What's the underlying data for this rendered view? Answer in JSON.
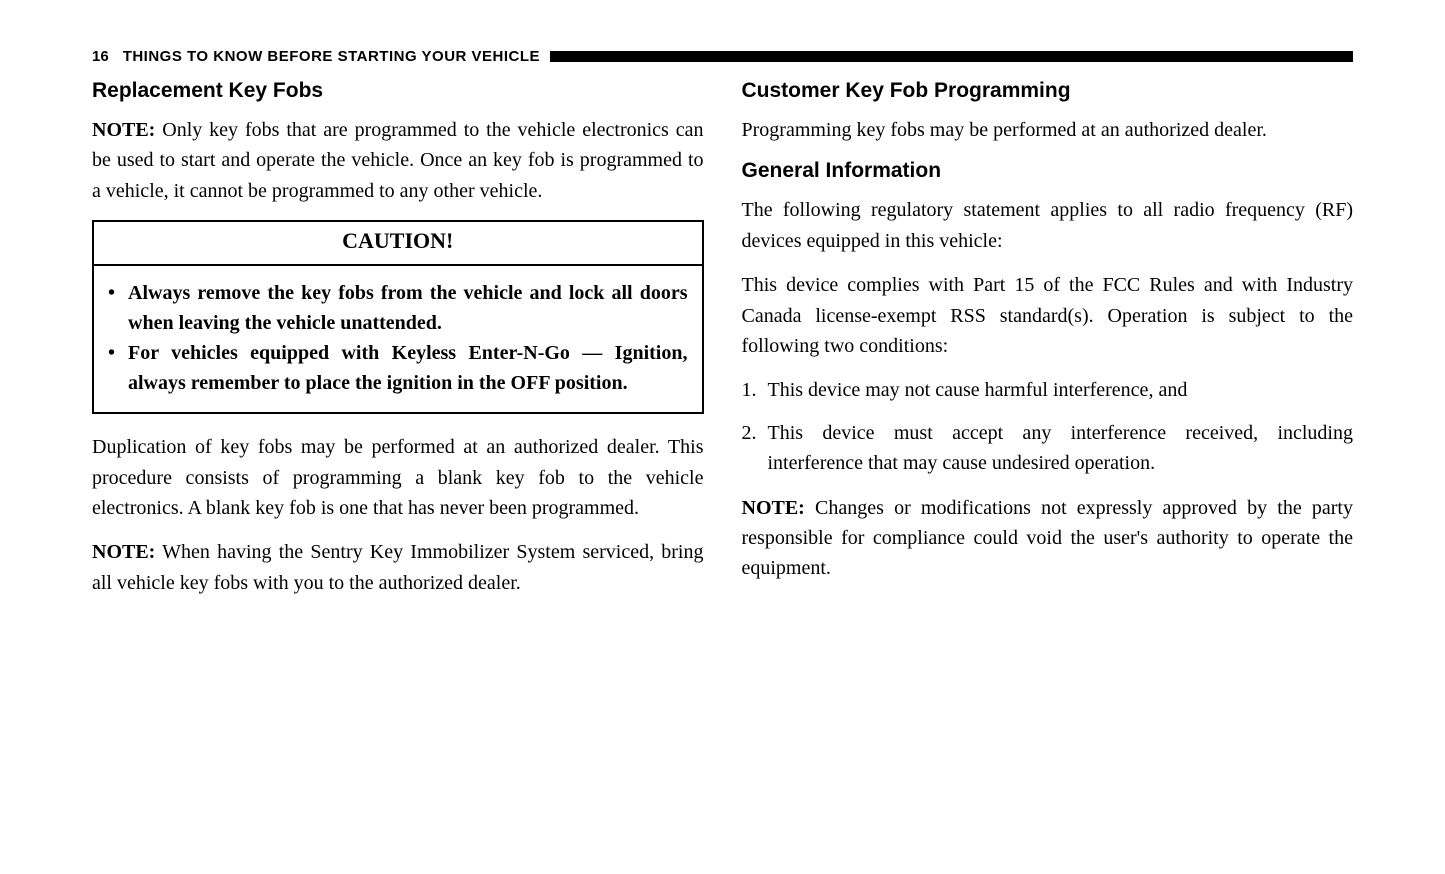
{
  "header": {
    "page_number": "16",
    "running_title": "THINGS TO KNOW BEFORE STARTING YOUR VEHICLE"
  },
  "left_column": {
    "heading1": "Replacement Key Fobs",
    "note1_label": "NOTE:",
    "note1_text": " Only key fobs that are programmed to the vehicle electronics can be used to start and operate the vehicle. Once an key fob is programmed to a vehicle, it cannot be programmed to any other vehicle.",
    "caution_title": "CAUTION!",
    "caution_items": [
      "Always remove the key fobs from the vehicle and lock all doors when leaving the vehicle unattended.",
      "For vehicles equipped with Keyless Enter-N-Go — Ignition, always remember to place the ignition in the OFF position."
    ],
    "para2": "Duplication of key fobs may be performed at an authorized dealer. This procedure consists of programming a blank key fob to the vehicle electronics. A blank key fob is one that has never been programmed.",
    "note2_label": "NOTE:",
    "note2_text": " When having the Sentry Key Immobilizer System serviced, bring all vehicle key fobs with you to the authorized dealer."
  },
  "right_column": {
    "heading1": "Customer Key Fob Programming",
    "para1": "Programming key fobs may be performed at an authorized dealer.",
    "heading2": "General Information",
    "para2": "The following regulatory statement applies to all radio frequency (RF) devices equipped in this vehicle:",
    "para3": "This device complies with Part 15 of the FCC Rules and with Industry Canada license-exempt RSS standard(s). Operation is subject to the following two conditions:",
    "conditions": [
      "This device may not cause harmful interference, and",
      "This device must accept any interference received, including interference that may cause undesired operation."
    ],
    "note_label": "NOTE:",
    "note_text": " Changes or modifications not expressly approved by the party responsible for compliance could void the user's authority to operate the equipment."
  }
}
